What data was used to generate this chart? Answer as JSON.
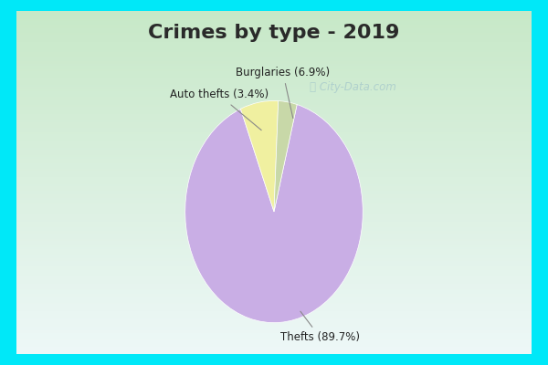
{
  "title": "Crimes by type - 2019",
  "slices": [
    {
      "label": "Thefts (89.7%)",
      "value": 89.7,
      "color": "#c9aee5"
    },
    {
      "label": "Burglaries (6.9%)",
      "value": 6.9,
      "color": "#f0f0a0"
    },
    {
      "label": "Auto thefts (3.4%)",
      "value": 3.4,
      "color": "#c8d8a8"
    }
  ],
  "cyan_border_color": "#00e8f8",
  "inner_bg_top": "#e8f8f8",
  "inner_bg_bottom": "#c8e8c8",
  "title_fontsize": 16,
  "label_fontsize": 8.5,
  "watermark": "ⓘ City-Data.com",
  "border_thickness": 12
}
